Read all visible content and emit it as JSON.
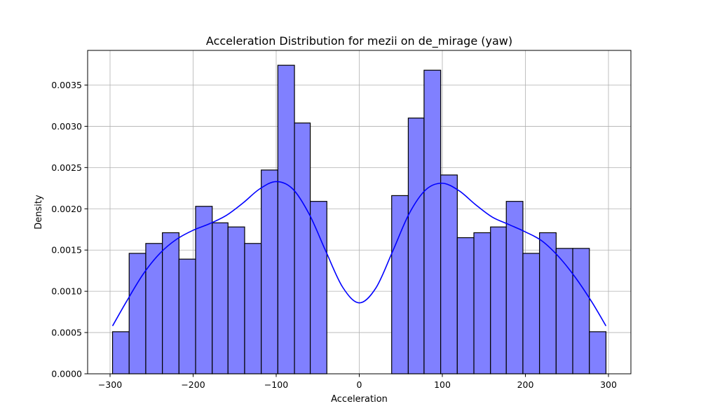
{
  "chart_data": {
    "type": "histogram",
    "title": "Acceleration Distribution for mezii on de_mirage (yaw)",
    "xlabel": "Acceleration",
    "ylabel": "Density",
    "xlim": [
      -327,
      327
    ],
    "ylim": [
      0,
      0.00392
    ],
    "x_ticks": [
      -300,
      -200,
      -100,
      0,
      100,
      200,
      300
    ],
    "x_tick_labels": [
      "−300",
      "−200",
      "−100",
      "0",
      "100",
      "200",
      "300"
    ],
    "y_ticks": [
      0,
      0.0005,
      0.001,
      0.0015,
      0.002,
      0.0025,
      0.003,
      0.0035
    ],
    "y_tick_labels": [
      "0.0000",
      "0.0005",
      "0.0010",
      "0.0015",
      "0.0020",
      "0.0025",
      "0.0030",
      "0.0035"
    ],
    "grid": true,
    "bar_color": "#8080ff",
    "bar_edge_color": "#000000",
    "kde_color": "#0000ff",
    "bins": [
      {
        "x0": -297,
        "x1": -277,
        "density": 0.00051
      },
      {
        "x0": -277,
        "x1": -257,
        "density": 0.00146
      },
      {
        "x0": -257,
        "x1": -237,
        "density": 0.00158
      },
      {
        "x0": -237,
        "x1": -217,
        "density": 0.00171
      },
      {
        "x0": -217,
        "x1": -197,
        "density": 0.00139
      },
      {
        "x0": -197,
        "x1": -177,
        "density": 0.00203
      },
      {
        "x0": -177,
        "x1": -158,
        "density": 0.00183
      },
      {
        "x0": -158,
        "x1": -138,
        "density": 0.00178
      },
      {
        "x0": -138,
        "x1": -118,
        "density": 0.00158
      },
      {
        "x0": -118,
        "x1": -98,
        "density": 0.00247
      },
      {
        "x0": -98,
        "x1": -78,
        "density": 0.00374
      },
      {
        "x0": -78,
        "x1": -59,
        "density": 0.00304
      },
      {
        "x0": -59,
        "x1": -39,
        "density": 0.00209
      },
      {
        "x0": 39,
        "x1": 59,
        "density": 0.00216
      },
      {
        "x0": 59,
        "x1": 78,
        "density": 0.0031
      },
      {
        "x0": 78,
        "x1": 98,
        "density": 0.00368
      },
      {
        "x0": 98,
        "x1": 118,
        "density": 0.00241
      },
      {
        "x0": 118,
        "x1": 138,
        "density": 0.00165
      },
      {
        "x0": 138,
        "x1": 158,
        "density": 0.00171
      },
      {
        "x0": 158,
        "x1": 177,
        "density": 0.00178
      },
      {
        "x0": 177,
        "x1": 197,
        "density": 0.00209
      },
      {
        "x0": 197,
        "x1": 217,
        "density": 0.00146
      },
      {
        "x0": 217,
        "x1": 237,
        "density": 0.00171
      },
      {
        "x0": 237,
        "x1": 257,
        "density": 0.00152
      },
      {
        "x0": 257,
        "x1": 277,
        "density": 0.00152
      },
      {
        "x0": 277,
        "x1": 297,
        "density": 0.00051
      }
    ],
    "kde": {
      "x": [
        -297,
        -280,
        -260,
        -240,
        -220,
        -200,
        -180,
        -160,
        -140,
        -120,
        -100,
        -80,
        -60,
        -40,
        -20,
        0,
        20,
        40,
        60,
        80,
        100,
        120,
        140,
        160,
        180,
        200,
        220,
        240,
        260,
        280,
        297
      ],
      "y": [
        0.00058,
        0.00088,
        0.00121,
        0.00146,
        0.00163,
        0.00174,
        0.00182,
        0.00192,
        0.00207,
        0.00224,
        0.00233,
        0.00224,
        0.00193,
        0.00148,
        0.00105,
        0.00086,
        0.00104,
        0.00148,
        0.00194,
        0.00223,
        0.00231,
        0.00222,
        0.00205,
        0.0019,
        0.00181,
        0.00172,
        0.00161,
        0.00142,
        0.00117,
        0.00087,
        0.00058
      ]
    }
  }
}
